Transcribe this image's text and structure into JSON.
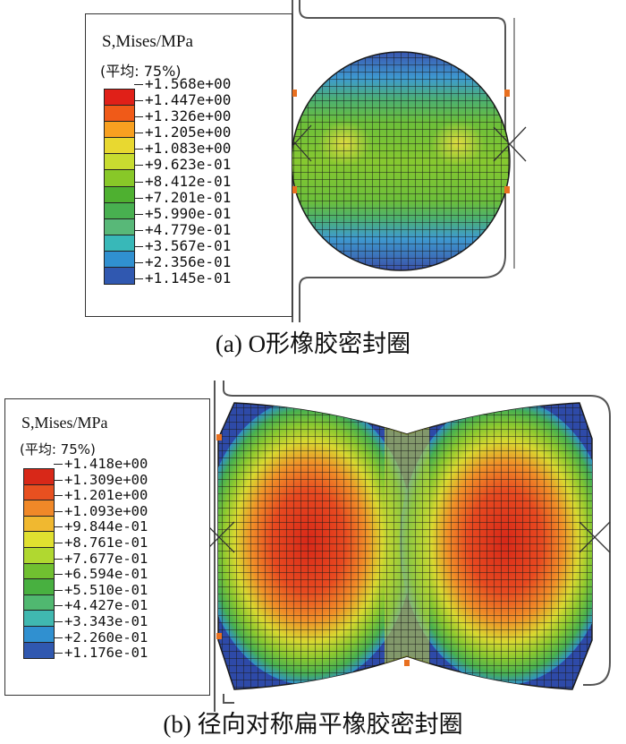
{
  "figure_a": {
    "legend_title": "S,Mises/MPa",
    "legend_avg": "(平均: 75%)",
    "legend_values": [
      "+1.568e+00",
      "+1.447e+00",
      "+1.326e+00",
      "+1.205e+00",
      "+1.083e+00",
      "+9.623e-01",
      "+8.412e-01",
      "+7.201e-01",
      "+5.990e-01",
      "+4.779e-01",
      "+3.567e-01",
      "+2.356e-01",
      "+1.145e-01"
    ],
    "legend_colors": [
      "#e02018",
      "#f05a18",
      "#f8a020",
      "#e8d830",
      "#c8dc30",
      "#88c828",
      "#4eb030",
      "#48b050",
      "#58b878",
      "#38b8b8",
      "#3090d0",
      "#3058b0",
      "#283890"
    ],
    "caption": "(a) O形橡胶密封圈"
  },
  "figure_b": {
    "legend_title": "S,Mises/MPa",
    "legend_avg": "(平均: 75%)",
    "legend_values": [
      "+1.418e+00",
      "+1.309e+00",
      "+1.201e+00",
      "+1.093e+00",
      "+9.844e-01",
      "+8.761e-01",
      "+7.677e-01",
      "+6.594e-01",
      "+5.510e-01",
      "+4.427e-01",
      "+3.343e-01",
      "+2.260e-01",
      "+1.176e-01"
    ],
    "legend_colors": [
      "#d82818",
      "#e85020",
      "#f08828",
      "#f0b830",
      "#e0e030",
      "#b0d830",
      "#70c030",
      "#48b040",
      "#50b870",
      "#40b8b0",
      "#3090d0",
      "#3058b0",
      "#283890"
    ],
    "caption": "(b) 径向对称扁平橡胶密封圈"
  }
}
